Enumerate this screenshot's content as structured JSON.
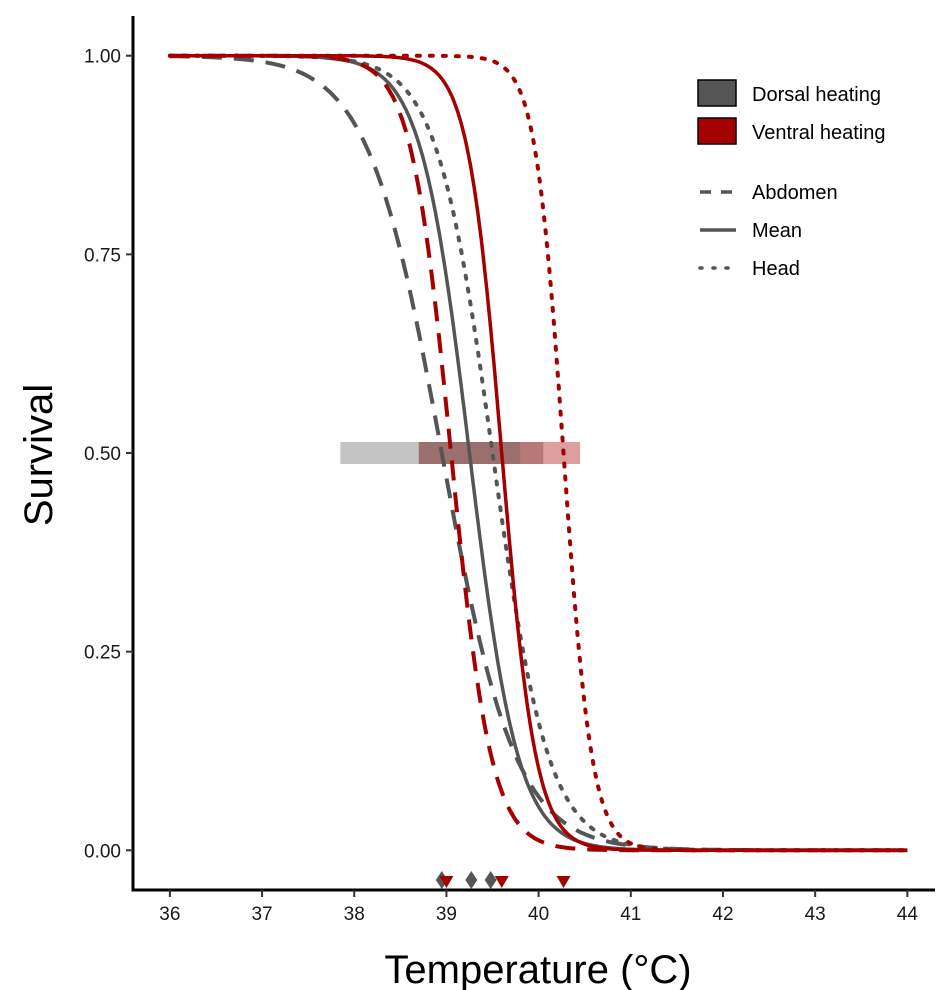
{
  "chart_data": {
    "type": "line",
    "title": "",
    "xlabel": "Temperature (°C)",
    "ylabel": "Survival",
    "xlim": [
      35.6,
      44.3
    ],
    "ylim": [
      -0.05,
      1.05
    ],
    "x_ticks": [
      36,
      37,
      38,
      39,
      40,
      41,
      42,
      43,
      44
    ],
    "y_ticks": [
      0,
      0.25,
      0.5,
      0.75,
      1.0
    ],
    "x_tick_labels": [
      "36",
      "37",
      "38",
      "39",
      "40",
      "41",
      "42",
      "43",
      "44"
    ],
    "y_tick_labels": [
      "0.00",
      "0.25",
      "0.50",
      "0.75",
      "1.00"
    ],
    "grid": false,
    "legend_position": "top-right",
    "colors": {
      "dorsal": "#555555",
      "ventral": "#a50000"
    },
    "legend": {
      "fill_entries": [
        {
          "label": "Dorsal heating",
          "group": "dorsal"
        },
        {
          "label": "Ventral heating",
          "group": "ventral"
        }
      ],
      "line_entries": [
        {
          "label": "Abdomen",
          "style": "dashed"
        },
        {
          "label": "Mean",
          "style": "solid"
        },
        {
          "label": "Head",
          "style": "dotted"
        }
      ]
    },
    "series": [
      {
        "group": "dorsal",
        "region": "abdomen",
        "style": "dashed",
        "ld50": 38.95,
        "slope": 2.5
      },
      {
        "group": "dorsal",
        "region": "mean",
        "style": "solid",
        "ld50": 39.25,
        "slope": 3.8
      },
      {
        "group": "dorsal",
        "region": "head",
        "style": "dotted",
        "ld50": 39.5,
        "slope": 3.3
      },
      {
        "group": "ventral",
        "region": "abdomen",
        "style": "dashed",
        "ld50": 39.05,
        "slope": 4.6
      },
      {
        "group": "ventral",
        "region": "mean",
        "style": "solid",
        "ld50": 39.6,
        "slope": 5.4
      },
      {
        "group": "ventral",
        "region": "head",
        "style": "dotted",
        "ld50": 40.27,
        "slope": 6.5
      }
    ],
    "confidence_bands": [
      {
        "group": "dorsal",
        "y": 0.5,
        "x_range": [
          37.85,
          40.05
        ]
      },
      {
        "group": "ventral",
        "y": 0.5,
        "x_range": [
          38.7,
          40.45
        ]
      },
      {
        "group": "dorsal",
        "y": 0.5,
        "x_range": [
          38.7,
          39.8
        ]
      }
    ],
    "markers": [
      {
        "group": "dorsal",
        "shape": "diamond",
        "x": 38.95
      },
      {
        "group": "dorsal",
        "shape": "diamond",
        "x": 39.27
      },
      {
        "group": "dorsal",
        "shape": "diamond",
        "x": 39.48
      },
      {
        "group": "ventral",
        "shape": "triangle-down",
        "x": 39.0
      },
      {
        "group": "ventral",
        "shape": "triangle-down",
        "x": 39.6
      },
      {
        "group": "ventral",
        "shape": "triangle-down",
        "x": 40.27
      }
    ]
  }
}
